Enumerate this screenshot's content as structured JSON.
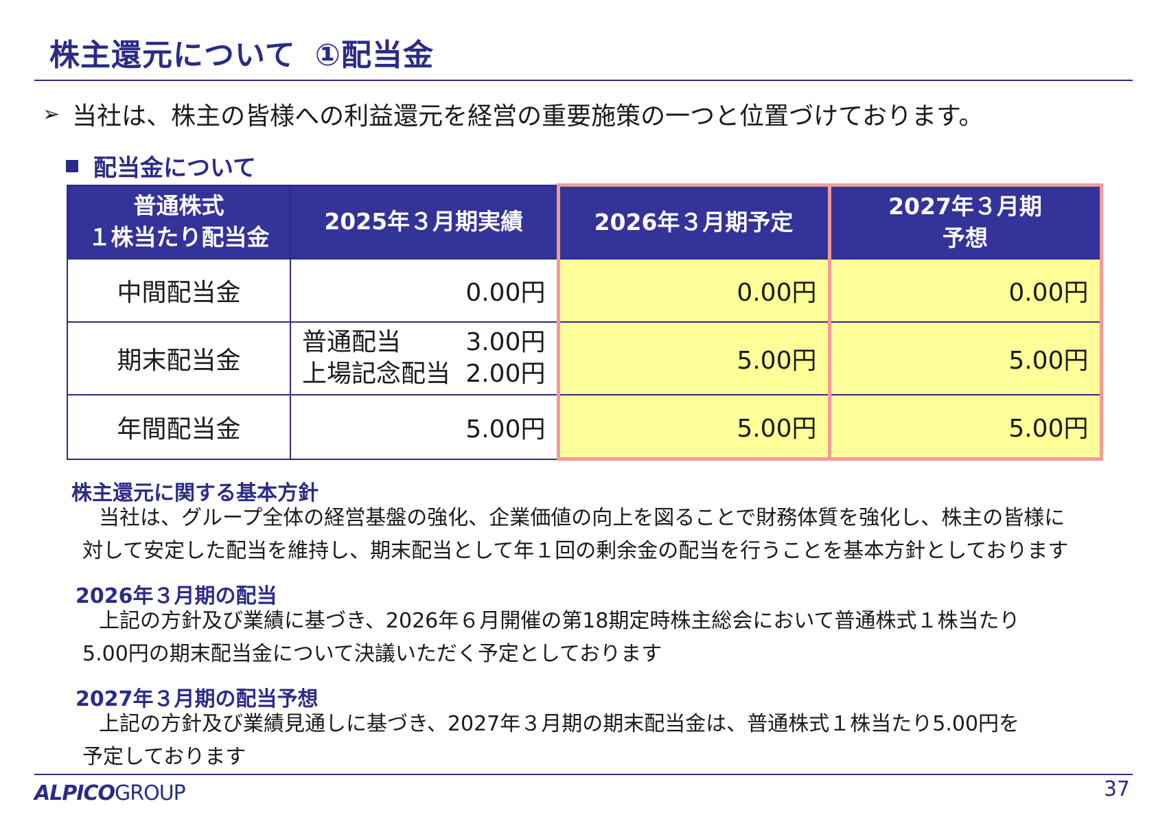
{
  "title": {
    "main": "株主還元について",
    "sub": "①配当金"
  },
  "intro": {
    "arrow": "➢",
    "text": "当社は、株主の皆様への利益還元を経営の重要施策の一つと位置づけております。"
  },
  "section_heading": "配当金について",
  "table": {
    "header": {
      "col0_line1": "普通株式",
      "col0_line2": "１株当たり配当金",
      "col1": "2025年３月期実績",
      "col2": "2026年３月期予定",
      "col3_line1": "2027年３月期",
      "col3_line2": "予想"
    },
    "rows": [
      {
        "label": "中間配当金",
        "c1": "0.00円",
        "c2": "0.00円",
        "c3": "0.00円"
      },
      {
        "label": "期末配当金",
        "c1_a_label": "普通配当",
        "c1_a_value": "3.00円",
        "c1_b_label": "上場記念配当",
        "c1_b_value": "2.00円",
        "c2": "5.00円",
        "c3": "5.00円"
      },
      {
        "label": "年間配当金",
        "c1": "5.00円",
        "c2": "5.00円",
        "c3": "5.00円"
      }
    ],
    "highlight_border_color": "#f39a9a",
    "highlight_fill_color": "#ffff99"
  },
  "policies": [
    {
      "title": "株主還元に関する基本方針",
      "line1": "当社は、グループ全体の経営基盤の強化、企業価値の向上を図ることで財務体質を強化し、株主の皆様に",
      "line2": "対して安定した配当を維持し、期末配当として年１回の剰余金の配当を行うことを基本方針としております"
    },
    {
      "title": "2026年３月期の配当",
      "line1": "上記の方針及び業績に基づき、2026年６月開催の第18期定時株主総会において普通株式１株当たり",
      "line2": "5.00円の期末配当金について決議いただく予定としております"
    },
    {
      "title": "2027年３月期の配当予想",
      "line1": "上記の方針及び業績見通しに基づき、2027年３月期の期末配当金は、普通株式１株当たり5.00円を",
      "line2": "予定しております"
    }
  ],
  "footer": {
    "logo_main": "ALPICO",
    "logo_sub": "GROUP",
    "page_number": "37"
  },
  "colors": {
    "navy": "#2b2b87",
    "header_fill": "#33339a"
  }
}
